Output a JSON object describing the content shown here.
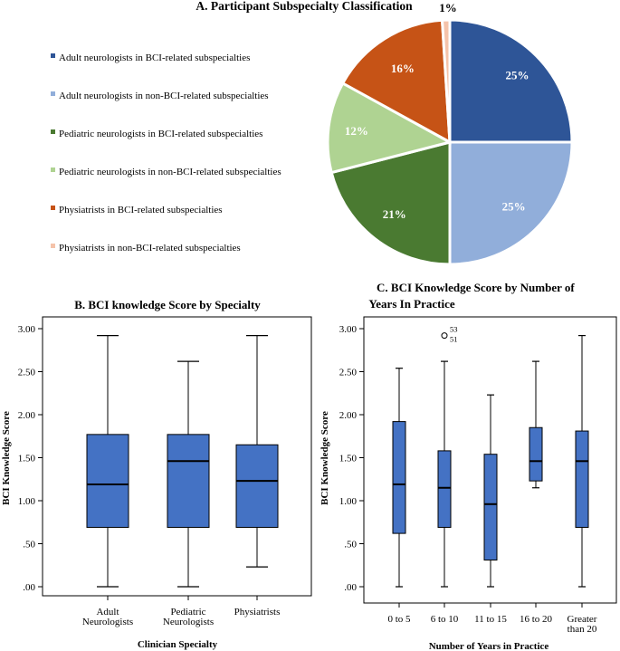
{
  "chart_data": [
    {
      "id": "A",
      "type": "pie",
      "title": "A. Participant Subspecialty Classification",
      "slices": [
        {
          "label": "Adult neurologists in BCI-related subspecialties",
          "value": 25,
          "display": "25%",
          "color": "#2E5597"
        },
        {
          "label": "Adult neurologists in non-BCI-related subspecialties",
          "value": 25,
          "display": "25%",
          "color": "#91AEDA"
        },
        {
          "label": "Pediatric neurologists in BCI-related subspecialties",
          "value": 21,
          "display": "21%",
          "color": "#4A7A31"
        },
        {
          "label": "Pediatric neurologists in non-BCI-related subspecialties",
          "value": 12,
          "display": "12%",
          "color": "#AFD392"
        },
        {
          "label": "Physiatrists in BCI-related subspecialties",
          "value": 16,
          "display": "16%",
          "color": "#C65316"
        },
        {
          "label": "Physiatrists in non-BCI-related subspecialties",
          "value": 1,
          "display": "1%",
          "color": "#F5C3AA"
        }
      ],
      "legend_position": "left"
    },
    {
      "id": "B",
      "type": "box",
      "title": "B. BCI knowledge Score by Specialty",
      "xlabel": "Clinician Specialty",
      "ylabel": "BCI Knowledge Score",
      "ylim": [
        0,
        3.0
      ],
      "yticks": [
        0,
        0.5,
        1.0,
        1.5,
        2.0,
        2.5,
        3.0
      ],
      "ytick_labels": [
        ".00",
        ".50",
        "1.00",
        "1.50",
        "2.00",
        "2.50",
        "3.00"
      ],
      "categories": [
        [
          "Adult",
          "Neurologists"
        ],
        [
          "Pediatric",
          "Neurologists"
        ],
        [
          "Physiatrists"
        ]
      ],
      "boxes": [
        {
          "min": 0.0,
          "q1": 0.69,
          "median": 1.19,
          "q3": 1.77,
          "max": 2.92
        },
        {
          "min": 0.0,
          "q1": 0.69,
          "median": 1.46,
          "q3": 1.77,
          "max": 2.62
        },
        {
          "min": 0.23,
          "q1": 0.69,
          "median": 1.23,
          "q3": 1.65,
          "max": 2.92
        }
      ],
      "box_color": "#4472C4"
    },
    {
      "id": "C",
      "type": "box",
      "title": [
        "C. BCI Knowledge Score by Number of",
        "Years In Practice"
      ],
      "xlabel": "Number of Years in Practice",
      "ylabel": "BCI Knowledge Score",
      "ylim": [
        0,
        3.0
      ],
      "yticks": [
        0,
        0.5,
        1.0,
        1.5,
        2.0,
        2.5,
        3.0
      ],
      "ytick_labels": [
        ".00",
        ".50",
        "1.00",
        "1.50",
        "2.00",
        "2.50",
        "3.00"
      ],
      "categories": [
        [
          "0 to 5"
        ],
        [
          "6 to 10"
        ],
        [
          "11 to 15"
        ],
        [
          "16 to 20"
        ],
        [
          "Greater",
          "than 20"
        ]
      ],
      "boxes": [
        {
          "min": 0.0,
          "q1": 0.62,
          "median": 1.19,
          "q3": 1.92,
          "max": 2.54
        },
        {
          "min": 0.0,
          "q1": 0.69,
          "median": 1.15,
          "q3": 1.58,
          "max": 2.62,
          "outlier": 2.92,
          "outlier_labels": [
            "53",
            "51"
          ]
        },
        {
          "min": 0.0,
          "q1": 0.31,
          "median": 0.96,
          "q3": 1.54,
          "max": 2.23
        },
        {
          "min": 1.15,
          "q1": 1.23,
          "median": 1.46,
          "q3": 1.85,
          "max": 2.62
        },
        {
          "min": 0.0,
          "q1": 0.69,
          "median": 1.46,
          "q3": 1.81,
          "max": 2.92
        }
      ],
      "box_color": "#4472C4"
    }
  ]
}
